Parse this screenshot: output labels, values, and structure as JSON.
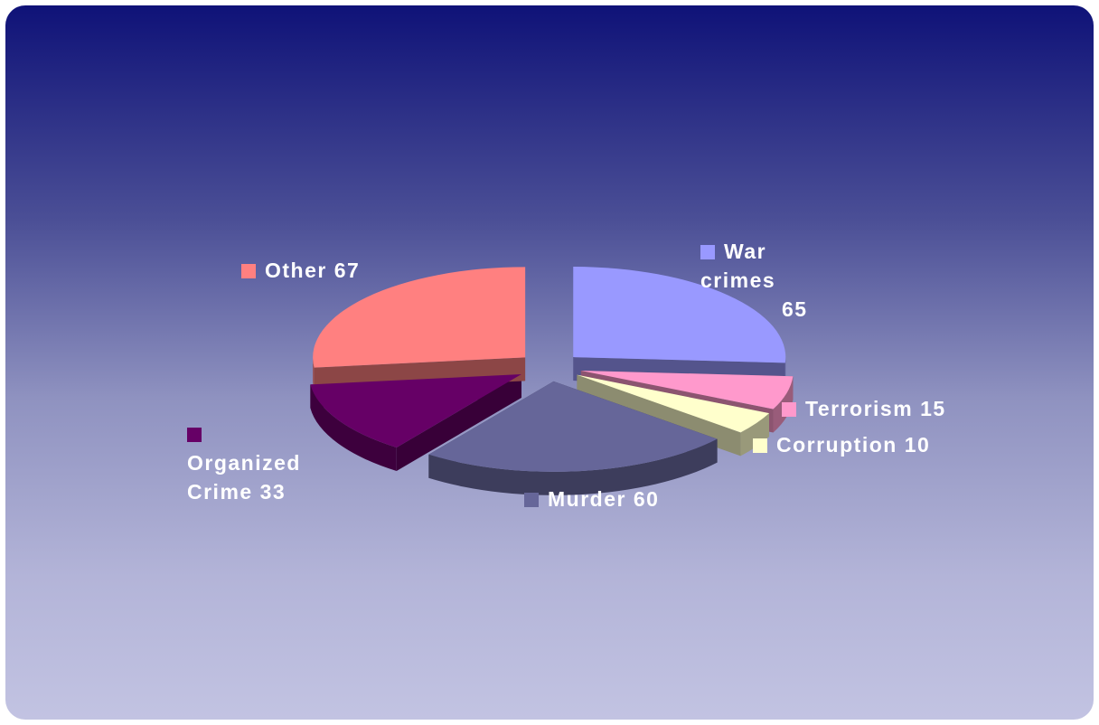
{
  "chart_data": {
    "type": "pie",
    "categories": [
      "War crimes",
      "Terrorism",
      "Corruption",
      "Murder",
      "Organized Crime",
      "Other"
    ],
    "values": [
      65,
      15,
      10,
      60,
      33,
      67
    ],
    "colors": [
      "#9999ff",
      "#ff99cc",
      "#ffffcc",
      "#666699",
      "#660066",
      "#ff8080"
    ]
  }
}
